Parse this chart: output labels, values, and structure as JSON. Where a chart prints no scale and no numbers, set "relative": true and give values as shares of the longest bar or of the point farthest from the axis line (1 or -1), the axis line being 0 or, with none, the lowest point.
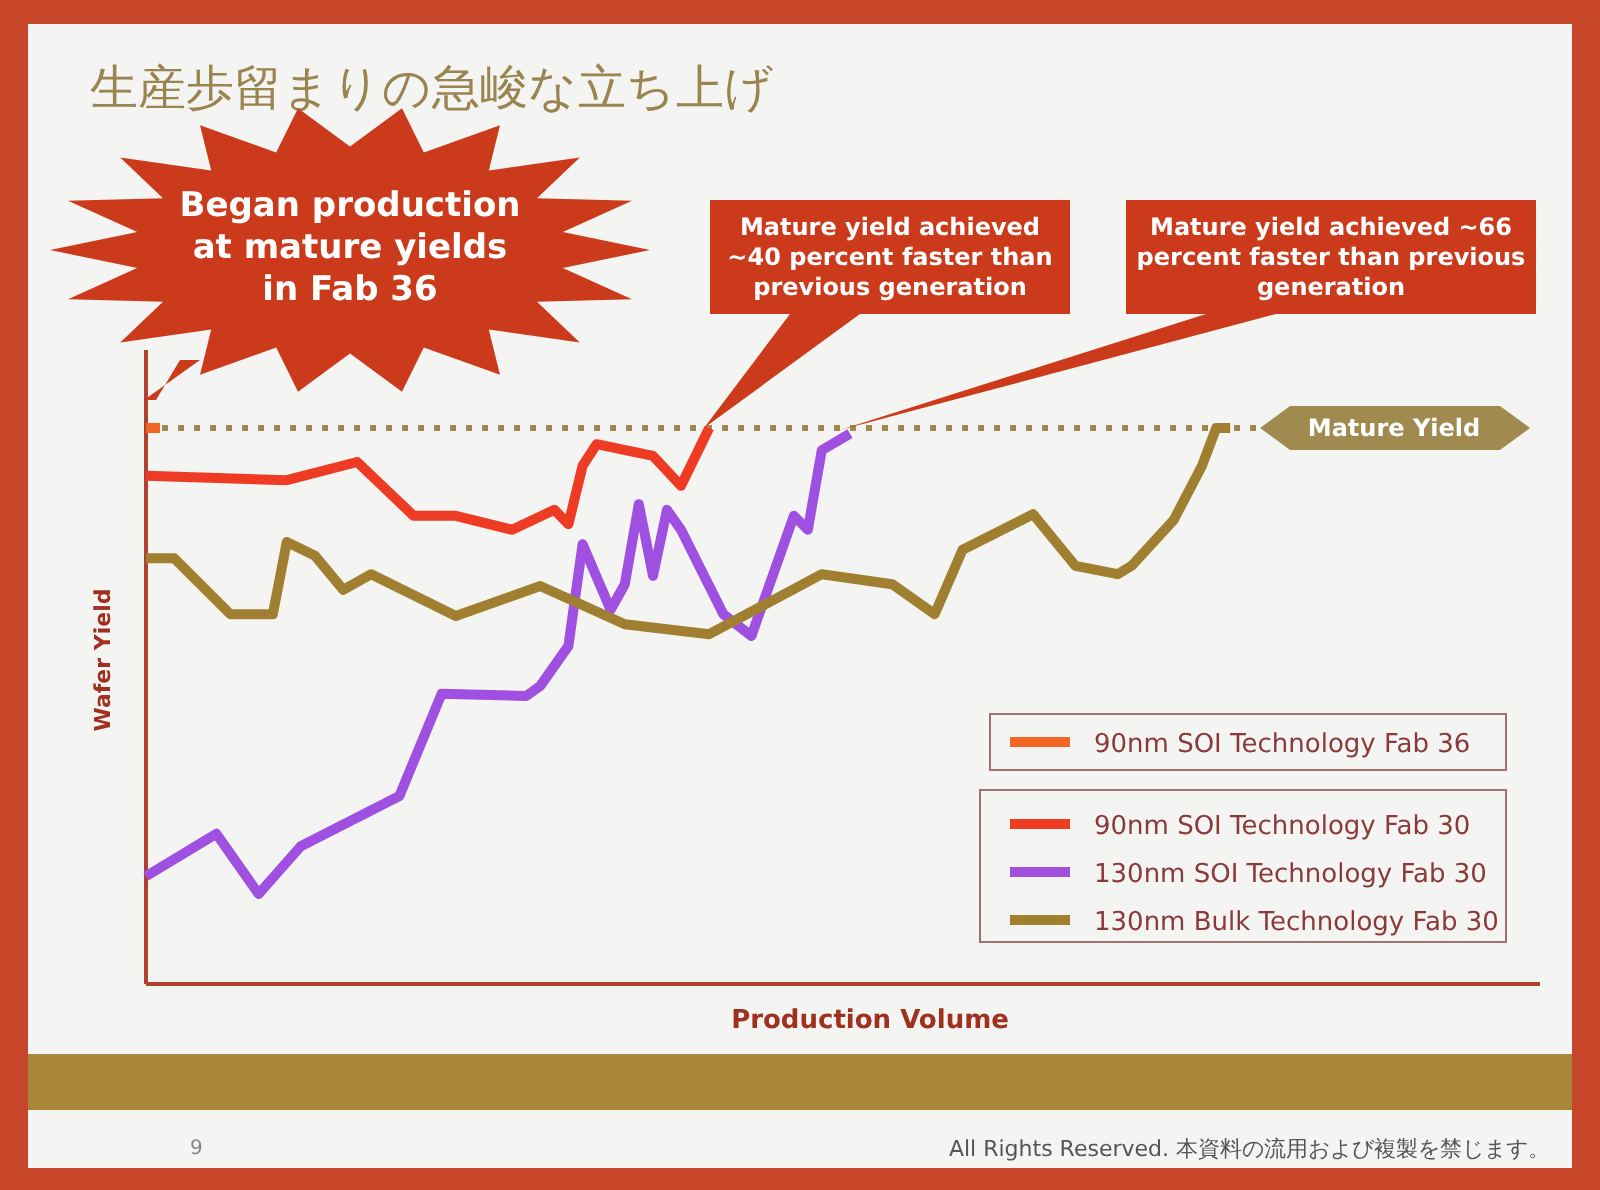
{
  "chart_data": {
    "type": "line",
    "title": "生産歩留まりの急峻な立ち上げ",
    "xlabel": "Production Volume",
    "ylabel": "Wafer Yield",
    "relative": true,
    "legend": "bottom right",
    "categories": [
      null,
      null,
      null,
      null,
      null,
      null,
      null,
      null,
      null,
      null,
      null,
      null,
      null,
      null,
      null,
      null,
      null,
      null,
      null,
      null,
      null,
      null,
      null,
      null,
      null,
      null,
      null,
      null,
      null,
      null,
      null,
      null,
      null,
      null,
      null,
      null,
      null,
      null,
      null,
      null,
      null,
      null,
      null,
      null,
      null,
      null,
      null,
      null,
      null,
      null,
      null,
      null,
      null,
      null,
      null,
      null,
      null,
      null,
      null,
      null,
      null,
      null,
      null,
      null,
      null,
      null,
      null,
      null,
      null,
      null,
      null,
      null,
      null,
      null,
      null,
      null,
      null,
      null,
      null,
      null,
      null,
      null,
      null,
      null,
      null,
      null,
      null,
      null,
      null,
      null,
      null,
      null,
      null,
      null,
      null,
      null,
      null,
      null,
      null,
      null
    ],
    "series": [
      {
        "name": "90nm SOI Technology Fab 36",
        "color": "#f26522",
        "values": [
          1,
          1,
          null,
          null,
          null,
          null,
          null,
          null,
          null,
          null,
          null,
          null,
          null,
          null,
          null,
          null,
          null,
          null,
          null,
          null,
          null,
          null,
          null,
          null,
          null,
          null,
          null,
          null,
          null,
          null,
          null,
          null,
          null,
          null,
          null,
          null,
          null,
          null,
          null,
          null,
          null,
          null,
          null,
          null,
          null,
          null,
          null,
          null,
          null,
          null,
          null,
          null,
          null,
          null,
          null,
          null,
          null,
          null,
          null,
          null,
          null,
          null,
          null,
          null,
          null,
          null,
          null,
          null,
          null,
          null,
          null,
          null,
          null,
          null,
          null,
          null,
          null,
          null,
          null,
          null,
          null,
          null,
          null,
          null,
          null,
          null,
          null,
          null,
          null,
          null,
          null,
          null,
          null,
          null,
          null,
          null,
          null,
          null,
          null,
          null
        ]
      },
      {
        "name": "90nm SOI Technology Fab 30",
        "color": "#ee3b24",
        "values": [
          0.914,
          null,
          null,
          null,
          null,
          null,
          null,
          null,
          null,
          null,
          0.906,
          null,
          null,
          null,
          null,
          0.939,
          null,
          null,
          null,
          0.842,
          null,
          null,
          0.842,
          null,
          null,
          null,
          0.817,
          null,
          null,
          0.853,
          0.827,
          0.932,
          0.971,
          null,
          null,
          null,
          0.95,
          null,
          0.896,
          null,
          1,
          null,
          null,
          null,
          null,
          null,
          null,
          null,
          null,
          null,
          null,
          null,
          null,
          null,
          null,
          null,
          null,
          null,
          null,
          null,
          null,
          null,
          null,
          null,
          null,
          null,
          null,
          null,
          null,
          null,
          null,
          null,
          null,
          null,
          null,
          null,
          null,
          null,
          null,
          null,
          null,
          null,
          null,
          null,
          null,
          null,
          null,
          null,
          null,
          null,
          null,
          null,
          null,
          null,
          null,
          null,
          null,
          null,
          null,
          null
        ]
      },
      {
        "name": "130nm SOI Technology Fab 30",
        "color": "#a050e0",
        "values": [
          0.194,
          null,
          null,
          null,
          null,
          0.27,
          null,
          null,
          0.162,
          null,
          null,
          0.248,
          null,
          null,
          null,
          null,
          null,
          null,
          0.338,
          null,
          null,
          0.522,
          null,
          null,
          null,
          null,
          null,
          0.518,
          0.536,
          null,
          0.608,
          0.791,
          null,
          0.673,
          0.719,
          0.863,
          0.734,
          0.853,
          0.817,
          null,
          null,
          0.665,
          null,
          0.626,
          null,
          null,
          0.842,
          0.817,
          0.96,
          null,
          0.99,
          null,
          null,
          null,
          null,
          null,
          null,
          null,
          null,
          null,
          null,
          null,
          null,
          null,
          null,
          null,
          null,
          null,
          null,
          null,
          null,
          null,
          null,
          null,
          null,
          null,
          null,
          null,
          null,
          null,
          null,
          null,
          null,
          null,
          null,
          null,
          null,
          null,
          null,
          null,
          null,
          null,
          null,
          null,
          null,
          null,
          null,
          null,
          null,
          null
        ]
      },
      {
        "name": "130nm Bulk Technology Fab 30",
        "color": "#a08030",
        "values": [
          0.766,
          null,
          0.766,
          null,
          null,
          null,
          0.665,
          null,
          null,
          0.665,
          0.795,
          null,
          0.77,
          null,
          0.709,
          null,
          0.737,
          null,
          null,
          null,
          null,
          null,
          0.662,
          null,
          null,
          null,
          null,
          null,
          0.716,
          null,
          null,
          null,
          null,
          null,
          0.647,
          null,
          null,
          null,
          null,
          null,
          0.629,
          null,
          null,
          null,
          null,
          null,
          null,
          null,
          0.737,
          null,
          null,
          null,
          null,
          0.719,
          null,
          null,
          0.665,
          null,
          0.781,
          null,
          null,
          null,
          null,
          0.845,
          null,
          null,
          0.752,
          null,
          null,
          0.737,
          0.752,
          null,
          null,
          0.835,
          null,
          0.932,
          1,
          1,
          null,
          null,
          null,
          null,
          null,
          null,
          null,
          null,
          null,
          null,
          null,
          null,
          null,
          null,
          null,
          null,
          null,
          null,
          null,
          null,
          null,
          null
        ]
      }
    ],
    "ref_lines": [
      {
        "axis": "y",
        "value": 1,
        "label": "Mature Yield",
        "color": "#a08a50",
        "line_style": "dotted"
      }
    ],
    "annotations": [
      "Began production at mature yields in Fab 36",
      "Mature yield achieved ~40 percent faster than previous generation",
      "Mature yield achieved ~66 percent faster than previous generation",
      "9",
      "All Rights Reserved. 本資料の流用および複製を禁じます。"
    ]
  }
}
